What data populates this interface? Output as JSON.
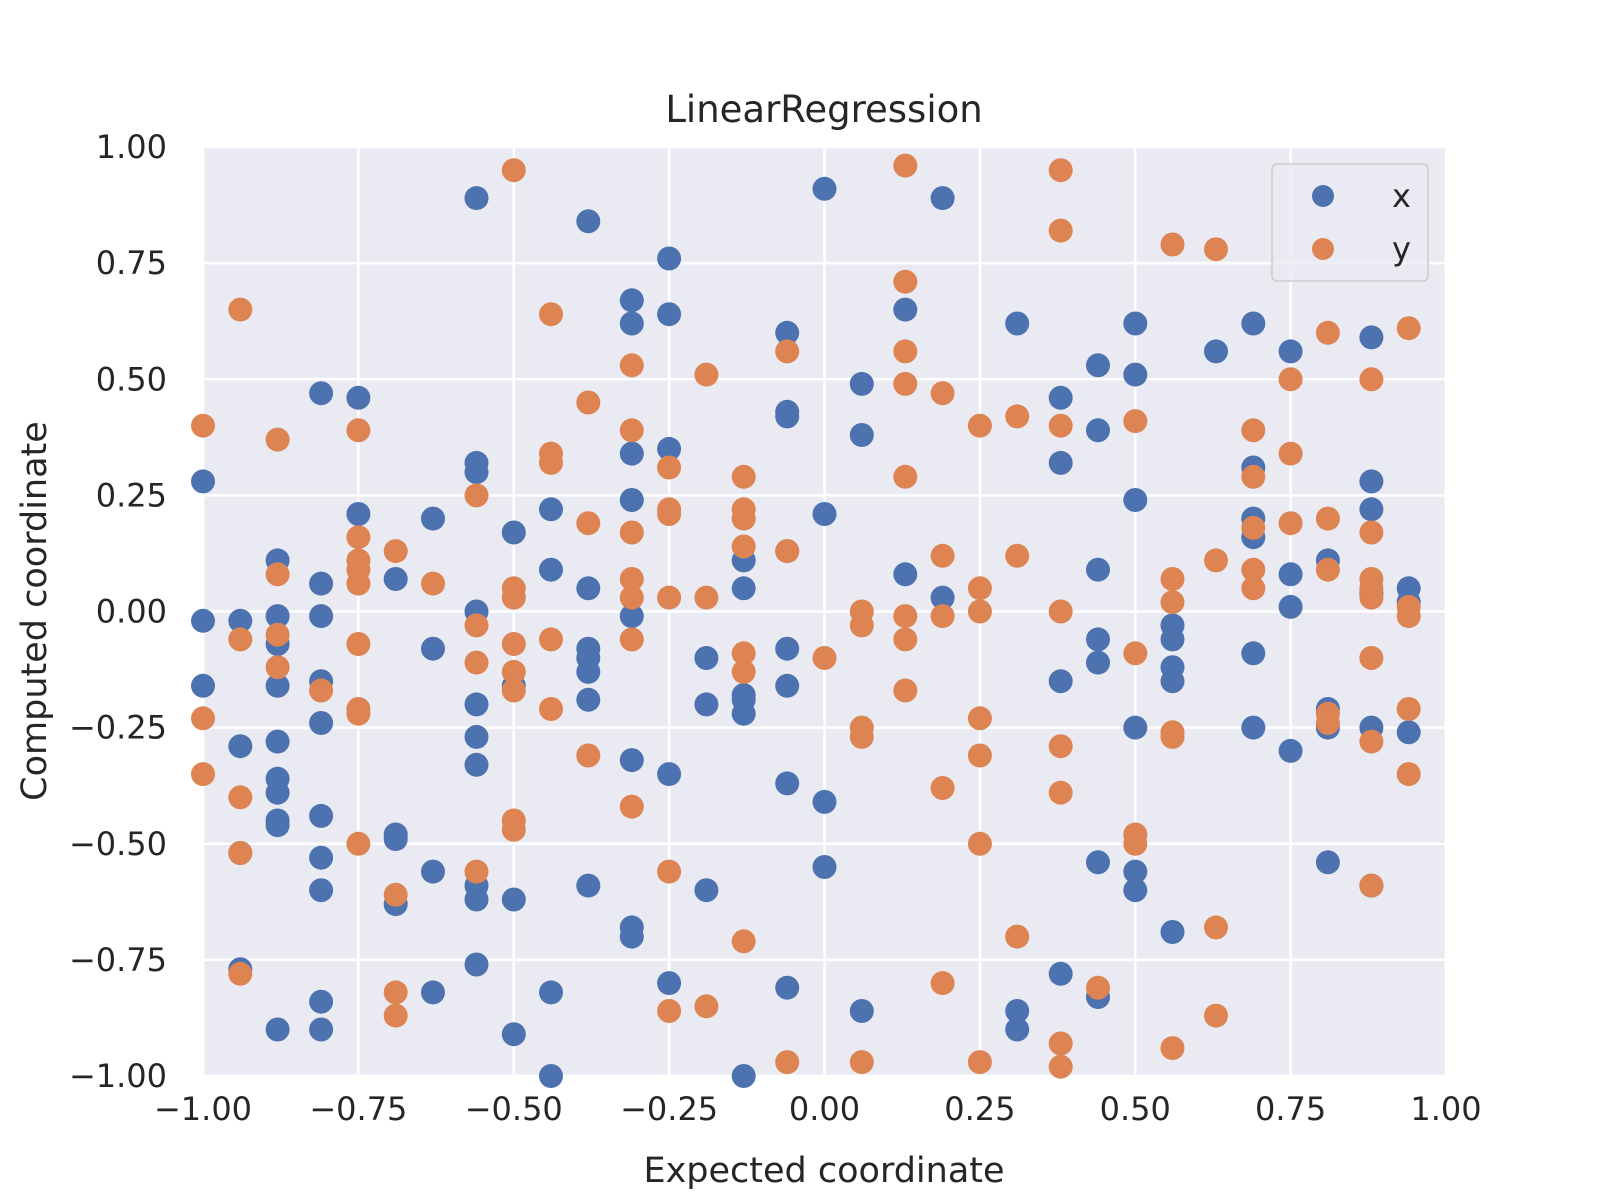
{
  "chart_data": {
    "type": "scatter",
    "title": "LinearRegression",
    "xlabel": "Expected coordinate",
    "ylabel": "Computed coordinate",
    "xlim": [
      -1.0,
      1.0
    ],
    "ylim": [
      -1.0,
      1.0
    ],
    "xticks": [
      "−1.00",
      "−0.75",
      "−0.50",
      "−0.25",
      "0.00",
      "0.25",
      "0.50",
      "0.75",
      "1.00"
    ],
    "yticks": [
      "−1.00",
      "−0.75",
      "−0.50",
      "−0.25",
      "0.00",
      "0.25",
      "0.50",
      "0.75",
      "1.00"
    ],
    "grid": true,
    "legend_position": "top-right",
    "colors": {
      "background": "#eaeaf2",
      "grid": "#ffffff",
      "text": "#262626"
    },
    "series": [
      {
        "name": "x",
        "color": "#4c72b0",
        "points": [
          [
            -1.0,
            0.28
          ],
          [
            -1.0,
            -0.02
          ],
          [
            -1.0,
            -0.16
          ],
          [
            -0.94,
            -0.02
          ],
          [
            -0.94,
            -0.29
          ],
          [
            -0.94,
            -0.52
          ],
          [
            -0.94,
            -0.77
          ],
          [
            -0.88,
            0.11
          ],
          [
            -0.88,
            -0.01
          ],
          [
            -0.88,
            -0.07
          ],
          [
            -0.88,
            -0.16
          ],
          [
            -0.88,
            -0.28
          ],
          [
            -0.88,
            -0.36
          ],
          [
            -0.88,
            -0.39
          ],
          [
            -0.88,
            -0.45
          ],
          [
            -0.88,
            -0.46
          ],
          [
            -0.88,
            -0.9
          ],
          [
            -0.81,
            0.47
          ],
          [
            -0.81,
            0.06
          ],
          [
            -0.81,
            -0.01
          ],
          [
            -0.81,
            -0.15
          ],
          [
            -0.81,
            -0.24
          ],
          [
            -0.81,
            -0.44
          ],
          [
            -0.81,
            -0.53
          ],
          [
            -0.81,
            -0.6
          ],
          [
            -0.81,
            -0.84
          ],
          [
            -0.81,
            -0.9
          ],
          [
            -0.75,
            0.46
          ],
          [
            -0.75,
            0.21
          ],
          [
            -0.69,
            0.07
          ],
          [
            -0.69,
            -0.48
          ],
          [
            -0.69,
            -0.49
          ],
          [
            -0.69,
            -0.63
          ],
          [
            -0.63,
            0.2
          ],
          [
            -0.63,
            -0.08
          ],
          [
            -0.63,
            -0.56
          ],
          [
            -0.63,
            -0.82
          ],
          [
            -0.56,
            0.89
          ],
          [
            -0.56,
            0.32
          ],
          [
            -0.56,
            0.3
          ],
          [
            -0.56,
            0.0
          ],
          [
            -0.56,
            -0.2
          ],
          [
            -0.56,
            -0.27
          ],
          [
            -0.56,
            -0.33
          ],
          [
            -0.56,
            -0.59
          ],
          [
            -0.56,
            -0.62
          ],
          [
            -0.56,
            -0.76
          ],
          [
            -0.5,
            0.17
          ],
          [
            -0.5,
            -0.16
          ],
          [
            -0.5,
            -0.62
          ],
          [
            -0.5,
            -0.91
          ],
          [
            -0.44,
            0.22
          ],
          [
            -0.44,
            0.09
          ],
          [
            -0.44,
            -0.82
          ],
          [
            -0.44,
            -1.0
          ],
          [
            -0.38,
            0.84
          ],
          [
            -0.38,
            0.05
          ],
          [
            -0.38,
            -0.08
          ],
          [
            -0.38,
            -0.1
          ],
          [
            -0.38,
            -0.13
          ],
          [
            -0.38,
            -0.19
          ],
          [
            -0.38,
            -0.59
          ],
          [
            -0.31,
            0.67
          ],
          [
            -0.31,
            0.62
          ],
          [
            -0.31,
            0.34
          ],
          [
            -0.31,
            0.24
          ],
          [
            -0.31,
            -0.01
          ],
          [
            -0.31,
            -0.32
          ],
          [
            -0.31,
            -0.68
          ],
          [
            -0.31,
            -0.7
          ],
          [
            -0.25,
            0.76
          ],
          [
            -0.25,
            0.64
          ],
          [
            -0.25,
            0.35
          ],
          [
            -0.25,
            -0.35
          ],
          [
            -0.25,
            -0.8
          ],
          [
            -0.19,
            -0.1
          ],
          [
            -0.19,
            -0.2
          ],
          [
            -0.19,
            -0.6
          ],
          [
            -0.13,
            0.11
          ],
          [
            -0.13,
            0.05
          ],
          [
            -0.13,
            -0.18
          ],
          [
            -0.13,
            -0.19
          ],
          [
            -0.13,
            -0.22
          ],
          [
            -0.13,
            -1.0
          ],
          [
            -0.06,
            0.6
          ],
          [
            -0.06,
            0.43
          ],
          [
            -0.06,
            0.42
          ],
          [
            -0.06,
            0.13
          ],
          [
            -0.06,
            -0.08
          ],
          [
            -0.06,
            -0.16
          ],
          [
            -0.06,
            -0.37
          ],
          [
            -0.06,
            -0.81
          ],
          [
            0.0,
            0.91
          ],
          [
            0.0,
            0.21
          ],
          [
            0.0,
            -0.41
          ],
          [
            0.0,
            -0.55
          ],
          [
            0.06,
            0.49
          ],
          [
            0.06,
            0.38
          ],
          [
            0.06,
            -0.86
          ],
          [
            0.13,
            0.65
          ],
          [
            0.13,
            0.08
          ],
          [
            0.19,
            0.89
          ],
          [
            0.19,
            0.03
          ],
          [
            0.31,
            0.62
          ],
          [
            0.31,
            -0.86
          ],
          [
            0.31,
            -0.9
          ],
          [
            0.38,
            0.46
          ],
          [
            0.38,
            0.32
          ],
          [
            0.38,
            -0.15
          ],
          [
            0.38,
            -0.78
          ],
          [
            0.44,
            0.53
          ],
          [
            0.44,
            0.39
          ],
          [
            0.44,
            0.09
          ],
          [
            0.44,
            -0.06
          ],
          [
            0.44,
            -0.11
          ],
          [
            0.44,
            -0.54
          ],
          [
            0.44,
            -0.83
          ],
          [
            0.5,
            0.62
          ],
          [
            0.5,
            0.51
          ],
          [
            0.5,
            0.24
          ],
          [
            0.5,
            -0.25
          ],
          [
            0.5,
            -0.56
          ],
          [
            0.5,
            -0.6
          ],
          [
            0.56,
            -0.03
          ],
          [
            0.56,
            -0.06
          ],
          [
            0.56,
            -0.12
          ],
          [
            0.56,
            -0.15
          ],
          [
            0.56,
            -0.69
          ],
          [
            0.63,
            0.56
          ],
          [
            0.69,
            0.62
          ],
          [
            0.69,
            0.31
          ],
          [
            0.69,
            0.2
          ],
          [
            0.69,
            0.16
          ],
          [
            0.69,
            -0.09
          ],
          [
            0.69,
            -0.25
          ],
          [
            0.75,
            0.56
          ],
          [
            0.75,
            0.08
          ],
          [
            0.75,
            0.01
          ],
          [
            0.75,
            -0.3
          ],
          [
            0.81,
            0.11
          ],
          [
            0.81,
            -0.21
          ],
          [
            0.81,
            -0.25
          ],
          [
            0.81,
            -0.54
          ],
          [
            0.88,
            0.59
          ],
          [
            0.88,
            0.28
          ],
          [
            0.88,
            0.22
          ],
          [
            0.88,
            0.04
          ],
          [
            0.88,
            -0.25
          ],
          [
            0.88,
            -0.59
          ],
          [
            0.94,
            0.05
          ],
          [
            0.94,
            0.02
          ],
          [
            0.94,
            -0.26
          ]
        ]
      },
      {
        "name": "y",
        "color": "#dd8452",
        "points": [
          [
            -1.0,
            0.4
          ],
          [
            -1.0,
            -0.23
          ],
          [
            -1.0,
            -0.35
          ],
          [
            -0.94,
            0.65
          ],
          [
            -0.94,
            -0.06
          ],
          [
            -0.94,
            -0.4
          ],
          [
            -0.94,
            -0.52
          ],
          [
            -0.94,
            -0.78
          ],
          [
            -0.88,
            0.37
          ],
          [
            -0.88,
            0.08
          ],
          [
            -0.88,
            -0.05
          ],
          [
            -0.88,
            -0.12
          ],
          [
            -0.81,
            -0.17
          ],
          [
            -0.75,
            0.39
          ],
          [
            -0.75,
            0.16
          ],
          [
            -0.75,
            0.11
          ],
          [
            -0.75,
            0.09
          ],
          [
            -0.75,
            0.06
          ],
          [
            -0.75,
            -0.07
          ],
          [
            -0.75,
            -0.21
          ],
          [
            -0.75,
            -0.22
          ],
          [
            -0.75,
            -0.5
          ],
          [
            -0.69,
            0.13
          ],
          [
            -0.69,
            -0.61
          ],
          [
            -0.69,
            -0.82
          ],
          [
            -0.69,
            -0.87
          ],
          [
            -0.63,
            0.06
          ],
          [
            -0.56,
            0.25
          ],
          [
            -0.56,
            -0.03
          ],
          [
            -0.56,
            -0.11
          ],
          [
            -0.56,
            -0.56
          ],
          [
            -0.5,
            0.95
          ],
          [
            -0.5,
            0.05
          ],
          [
            -0.5,
            0.03
          ],
          [
            -0.5,
            -0.07
          ],
          [
            -0.5,
            -0.13
          ],
          [
            -0.5,
            -0.17
          ],
          [
            -0.5,
            -0.45
          ],
          [
            -0.5,
            -0.47
          ],
          [
            -0.44,
            0.64
          ],
          [
            -0.44,
            0.34
          ],
          [
            -0.44,
            0.32
          ],
          [
            -0.44,
            -0.06
          ],
          [
            -0.44,
            -0.21
          ],
          [
            -0.38,
            0.45
          ],
          [
            -0.38,
            0.19
          ],
          [
            -0.38,
            -0.31
          ],
          [
            -0.31,
            0.53
          ],
          [
            -0.31,
            0.39
          ],
          [
            -0.31,
            0.17
          ],
          [
            -0.31,
            0.07
          ],
          [
            -0.31,
            0.03
          ],
          [
            -0.31,
            -0.06
          ],
          [
            -0.31,
            -0.42
          ],
          [
            -0.25,
            0.31
          ],
          [
            -0.25,
            0.22
          ],
          [
            -0.25,
            0.21
          ],
          [
            -0.25,
            0.03
          ],
          [
            -0.25,
            -0.56
          ],
          [
            -0.25,
            -0.86
          ],
          [
            -0.19,
            0.51
          ],
          [
            -0.19,
            0.03
          ],
          [
            -0.19,
            -0.85
          ],
          [
            -0.13,
            0.29
          ],
          [
            -0.13,
            0.22
          ],
          [
            -0.13,
            0.2
          ],
          [
            -0.13,
            0.14
          ],
          [
            -0.13,
            -0.09
          ],
          [
            -0.13,
            -0.13
          ],
          [
            -0.13,
            -0.71
          ],
          [
            -0.06,
            0.56
          ],
          [
            -0.06,
            0.13
          ],
          [
            -0.06,
            -0.97
          ],
          [
            0.0,
            -0.1
          ],
          [
            0.06,
            0.0
          ],
          [
            0.06,
            -0.03
          ],
          [
            0.06,
            -0.25
          ],
          [
            0.06,
            -0.27
          ],
          [
            0.06,
            -0.97
          ],
          [
            0.13,
            0.96
          ],
          [
            0.13,
            0.71
          ],
          [
            0.13,
            0.56
          ],
          [
            0.13,
            0.49
          ],
          [
            0.13,
            0.29
          ],
          [
            0.13,
            -0.01
          ],
          [
            0.13,
            -0.06
          ],
          [
            0.13,
            -0.17
          ],
          [
            0.19,
            0.47
          ],
          [
            0.19,
            0.12
          ],
          [
            0.19,
            -0.01
          ],
          [
            0.19,
            -0.38
          ],
          [
            0.19,
            -0.8
          ],
          [
            0.25,
            0.4
          ],
          [
            0.25,
            0.05
          ],
          [
            0.25,
            -0.0
          ],
          [
            0.25,
            -0.23
          ],
          [
            0.25,
            -0.31
          ],
          [
            0.25,
            -0.5
          ],
          [
            0.25,
            -0.97
          ],
          [
            0.31,
            0.42
          ],
          [
            0.31,
            0.12
          ],
          [
            0.31,
            -0.7
          ],
          [
            0.38,
            0.95
          ],
          [
            0.38,
            0.82
          ],
          [
            0.38,
            0.4
          ],
          [
            0.38,
            -0.0
          ],
          [
            0.38,
            -0.29
          ],
          [
            0.38,
            -0.39
          ],
          [
            0.38,
            -0.93
          ],
          [
            0.38,
            -0.98
          ],
          [
            0.44,
            -0.81
          ],
          [
            0.5,
            0.41
          ],
          [
            0.5,
            -0.09
          ],
          [
            0.5,
            -0.48
          ],
          [
            0.5,
            -0.5
          ],
          [
            0.56,
            0.79
          ],
          [
            0.56,
            0.07
          ],
          [
            0.56,
            0.02
          ],
          [
            0.56,
            -0.26
          ],
          [
            0.56,
            -0.27
          ],
          [
            0.56,
            -0.94
          ],
          [
            0.63,
            0.78
          ],
          [
            0.63,
            0.11
          ],
          [
            0.63,
            -0.68
          ],
          [
            0.63,
            -0.87
          ],
          [
            0.69,
            0.39
          ],
          [
            0.69,
            0.29
          ],
          [
            0.69,
            0.18
          ],
          [
            0.69,
            0.09
          ],
          [
            0.69,
            0.05
          ],
          [
            0.75,
            0.5
          ],
          [
            0.75,
            0.34
          ],
          [
            0.75,
            0.19
          ],
          [
            0.81,
            0.6
          ],
          [
            0.81,
            0.2
          ],
          [
            0.81,
            0.09
          ],
          [
            0.81,
            -0.22
          ],
          [
            0.81,
            -0.24
          ],
          [
            0.88,
            0.5
          ],
          [
            0.88,
            0.17
          ],
          [
            0.88,
            0.07
          ],
          [
            0.88,
            0.05
          ],
          [
            0.88,
            0.03
          ],
          [
            0.88,
            -0.1
          ],
          [
            0.88,
            -0.28
          ],
          [
            0.88,
            -0.59
          ],
          [
            0.94,
            0.61
          ],
          [
            0.94,
            0.01
          ],
          [
            0.94,
            -0.01
          ],
          [
            0.94,
            -0.21
          ],
          [
            0.94,
            -0.35
          ]
        ]
      }
    ]
  }
}
